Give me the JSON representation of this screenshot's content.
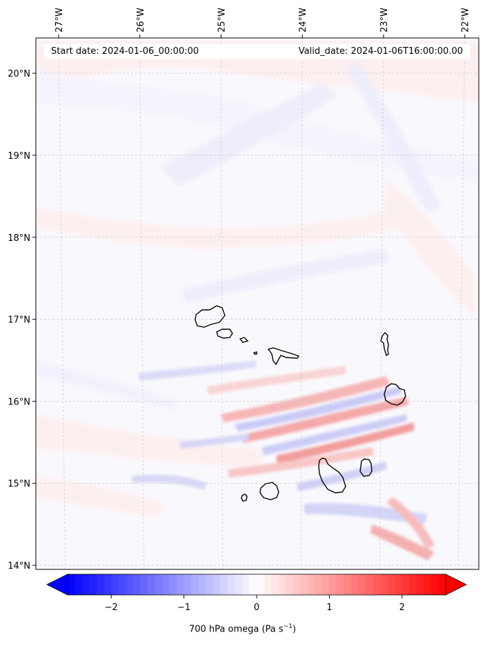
{
  "map": {
    "start_date": "Start date: 2024-01-06_00:00:00",
    "valid_date": "Valid_date: 2024-01-06T16:00:00.00",
    "lon_labels": [
      "27°W",
      "26°W",
      "25°W",
      "24°W",
      "23°W",
      "22°W"
    ],
    "lat_labels": [
      "20°N",
      "19°N",
      "18°N",
      "17°N",
      "16°N",
      "15°N",
      "14°N"
    ],
    "longitudes": [
      -27,
      -26,
      -25,
      -24,
      -23,
      -22
    ],
    "latitudes": [
      20,
      19,
      18,
      17,
      16,
      15,
      14
    ],
    "extent": {
      "lon_min": -27.33,
      "lon_max": -21.78,
      "lat_min": 13.95,
      "lat_max": 20.43
    }
  },
  "colorbar": {
    "label_main": "700 hPa omega (Pa s",
    "label_exp": "−1",
    "label_close": ")",
    "tick_labels": [
      "−2",
      "−1",
      "0",
      "1",
      "2"
    ],
    "ticks": [
      -2,
      -1,
      0,
      1,
      2
    ],
    "range": [
      -2.6,
      2.6
    ],
    "colormap": "bwr",
    "extend": "both"
  },
  "colors": {
    "negative": "#0000ff",
    "neutral": "#ffffff",
    "positive": "#ff0000",
    "coastline": "#000000"
  }
}
